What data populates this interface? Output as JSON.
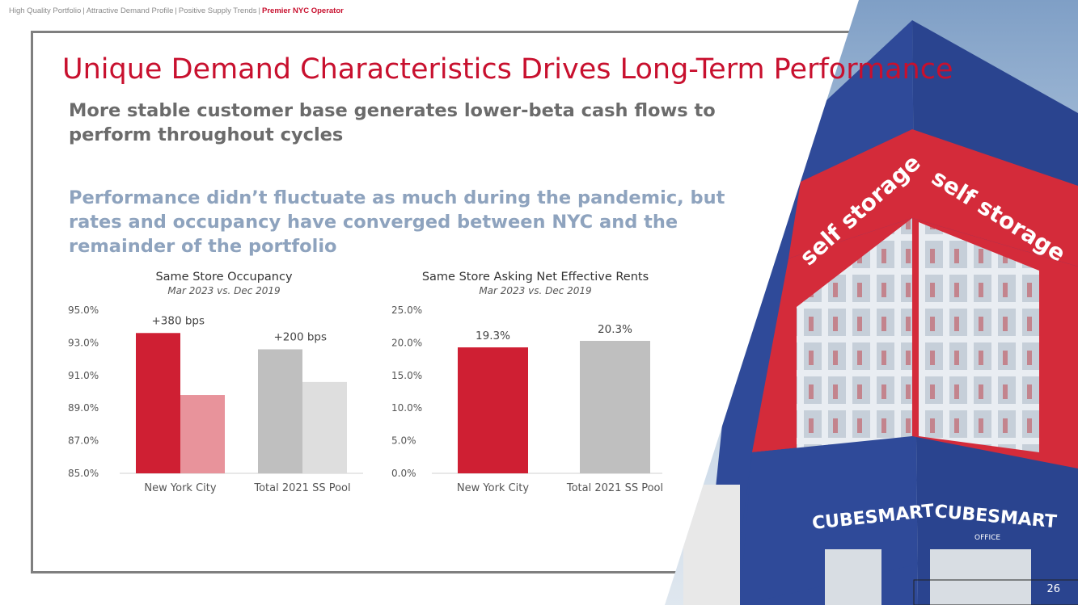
{
  "breadcrumb": {
    "items": [
      "High Quality Portfolio",
      "Attractive Demand Profile",
      "Positive Supply Trends"
    ],
    "active": "Premier NYC Operator"
  },
  "header": {
    "title": "Unique Demand Characteristics Drives Long-Term Performance",
    "subtitle": "More stable customer base generates lower-beta cash flows to perform throughout cycles",
    "subtitle2": "Performance didn’t fluctuate as much during the pandemic, but rates and occupancy have converged between NYC and the remainder of the portfolio"
  },
  "photo": {
    "sign1": "self storage",
    "sign2": "self storage",
    "brand1": "CUBESMART",
    "brand2": "CUBESMART",
    "office": "OFFICE"
  },
  "page_number": "26",
  "colors": {
    "accent": "#c8102e",
    "nyc_current": "#cf1f33",
    "nyc_prior": "#e8939b",
    "pool_current": "#bfbfbf",
    "pool_prior": "#dedede",
    "building_blue": "#2f4a99",
    "building_red": "#d42b3a"
  },
  "chart_data": [
    {
      "type": "bar",
      "title": "Same Store Occupancy",
      "subtitle": "Mar 2023 vs. Dec 2019",
      "categories": [
        "New York City",
        "Total 2021 SS Pool"
      ],
      "series": [
        {
          "name": "Mar 2023",
          "values": [
            93.6,
            92.6
          ]
        },
        {
          "name": "Dec 2019",
          "values": [
            89.8,
            90.6
          ]
        }
      ],
      "annotations": [
        "+380 bps",
        "+200 bps"
      ],
      "yticks": [
        "85.0%",
        "87.0%",
        "89.0%",
        "91.0%",
        "93.0%",
        "95.0%"
      ],
      "ylim": [
        85,
        95
      ],
      "grid": false,
      "xlabel": "",
      "ylabel": ""
    },
    {
      "type": "bar",
      "title": "Same Store Asking Net Effective Rents",
      "subtitle": "Mar 2023 vs. Dec 2019",
      "categories": [
        "New York City",
        "Total 2021 SS Pool"
      ],
      "values": [
        19.3,
        20.3
      ],
      "value_labels": [
        "19.3%",
        "20.3%"
      ],
      "yticks": [
        "0.0%",
        "5.0%",
        "10.0%",
        "15.0%",
        "20.0%",
        "25.0%"
      ],
      "ylim": [
        0,
        25
      ],
      "grid": false,
      "xlabel": "",
      "ylabel": ""
    }
  ]
}
